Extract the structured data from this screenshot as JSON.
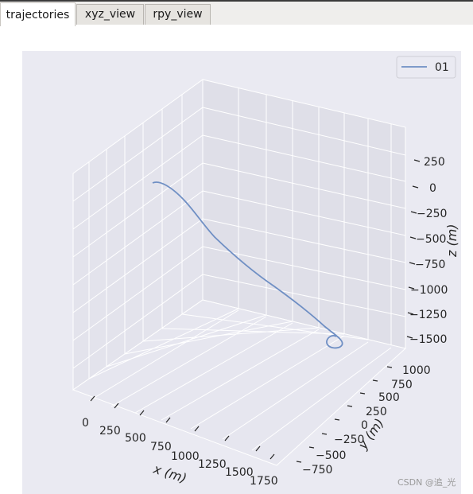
{
  "tabs": [
    {
      "label": "trajectories",
      "active": true
    },
    {
      "label": "xyz_view",
      "active": false
    },
    {
      "label": "rpy_view",
      "active": false
    }
  ],
  "watermark": "CSDN @追_光",
  "chart_data": {
    "type": "line3d",
    "title": "",
    "xlabel": "x (m)",
    "ylabel": "y (m)",
    "zlabel": "z (m)",
    "x_ticks": [
      "0",
      "250",
      "500",
      "750",
      "1000",
      "1250",
      "1500",
      "1750"
    ],
    "y_ticks": [
      "−750",
      "−500",
      "−250",
      "0",
      "250",
      "500",
      "750",
      "1000"
    ],
    "z_ticks": [
      "250",
      "0",
      "−250",
      "−500",
      "−750",
      "−1000",
      "−1250",
      "−1500"
    ],
    "legend": {
      "placement": "top-right",
      "entries": [
        "01"
      ]
    },
    "series": [
      {
        "name": "01",
        "color": "#6f8fc4"
      }
    ],
    "grid": true,
    "background": "#eaeaf2"
  }
}
